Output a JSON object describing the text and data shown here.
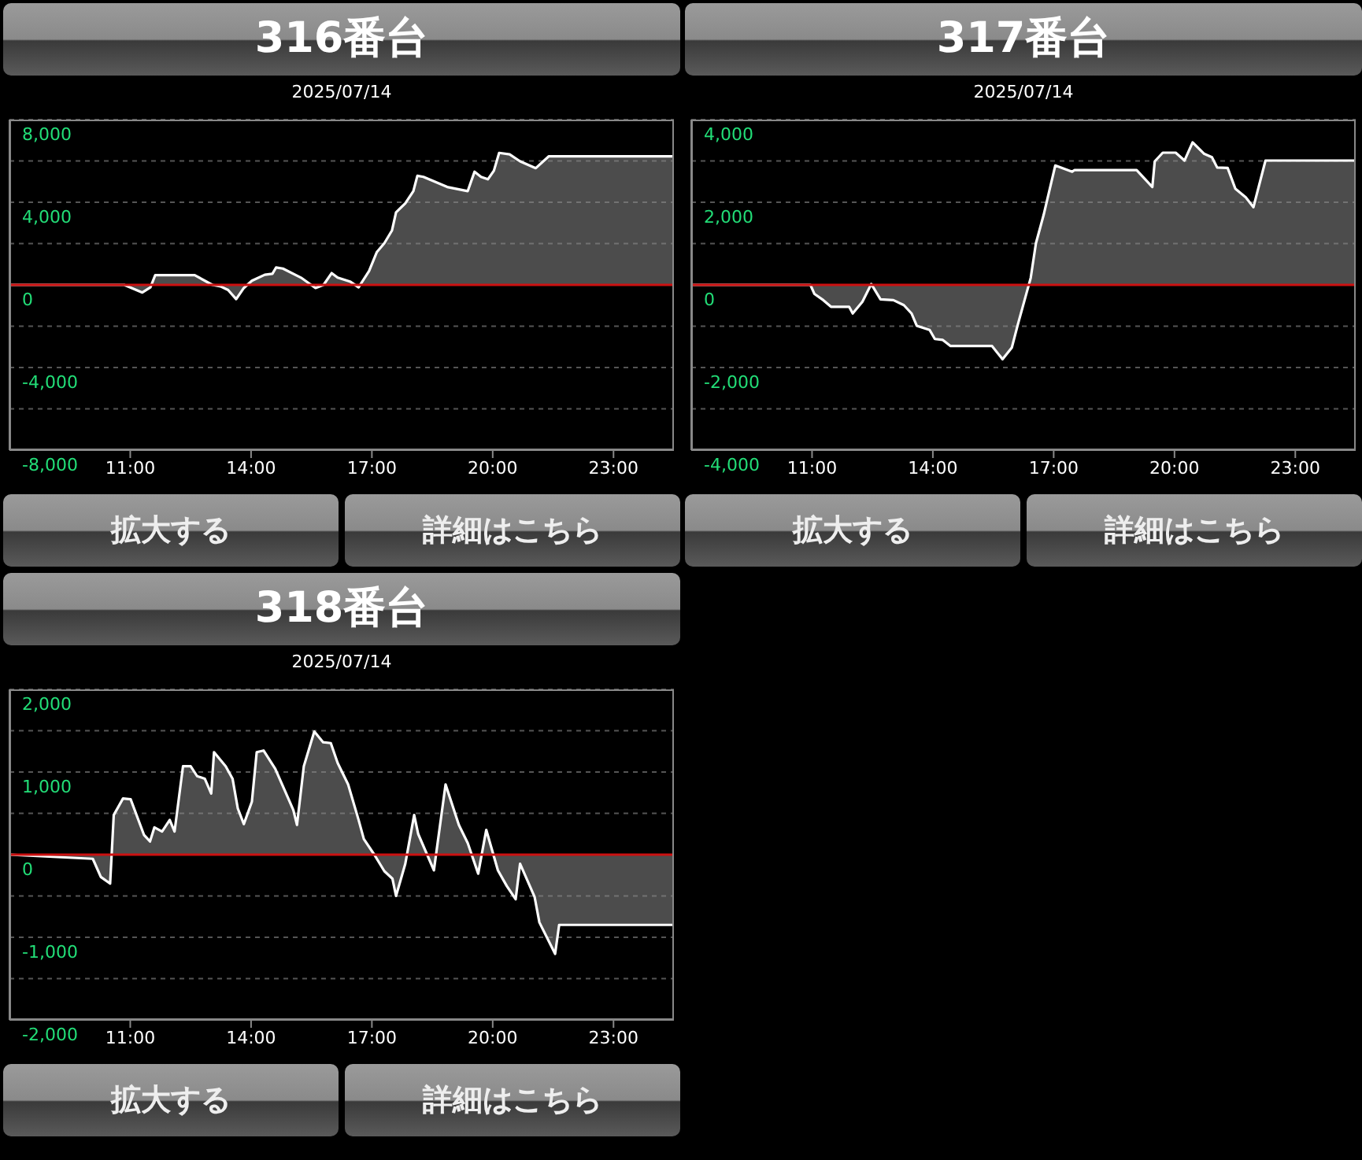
{
  "chart_data": [
    {
      "type": "area",
      "title": "316番台",
      "subtitle": "2025/07/14",
      "color": "#ffffff",
      "grid": "y",
      "xlim": [
        8,
        24.5
      ],
      "xticks": [
        {
          "value": 11,
          "label": "11:00"
        },
        {
          "value": 14,
          "label": "14:00"
        },
        {
          "value": 17,
          "label": "17:00"
        },
        {
          "value": 20,
          "label": "20:00"
        },
        {
          "value": 23,
          "label": "23:00"
        }
      ],
      "ylim": [
        -8000,
        8000
      ],
      "yticks": [
        {
          "value": 8000,
          "label": "8,000"
        },
        {
          "value": 6000,
          "label": null
        },
        {
          "value": 4000,
          "label": "4,000"
        },
        {
          "value": 2000,
          "label": null
        },
        {
          "value": 0,
          "label": "0"
        },
        {
          "value": -2000,
          "label": null
        },
        {
          "value": -4000,
          "label": "-4,000"
        },
        {
          "value": -6000,
          "label": null
        },
        {
          "value": -8000,
          "label": "-8,000"
        }
      ],
      "ref_lines": [
        {
          "axis": "y",
          "value": 0,
          "color": "#cc1111"
        }
      ],
      "annotations": [
        "拡大する",
        "詳細はこちら"
      ],
      "x": [
        8,
        10.85,
        11.3,
        11.5,
        11.62,
        12.6,
        13.04,
        13.24,
        13.43,
        13.63,
        13.82,
        14.02,
        14.34,
        14.53,
        14.62,
        14.79,
        15.24,
        15.6,
        15.8,
        16,
        16.15,
        16.47,
        16.67,
        16.93,
        17.12,
        17.31,
        17.5,
        17.6,
        17.83,
        18.03,
        18.13,
        18.28,
        18.87,
        19.38,
        19.55,
        19.71,
        19.88,
        20.03,
        20.16,
        20.42,
        20.68,
        21.07,
        21.39,
        24.5
      ],
      "values": [
        0,
        0,
        -370,
        -120,
        470,
        470,
        0,
        -70,
        -250,
        -690,
        -150,
        200,
        490,
        540,
        840,
        790,
        350,
        -150,
        0,
        570,
        350,
        150,
        -120,
        670,
        1580,
        2020,
        2640,
        3510,
        3950,
        4540,
        5280,
        5230,
        4740,
        4540,
        5480,
        5230,
        5110,
        5530,
        6390,
        6320,
        5980,
        5650,
        6220,
        6220
      ]
    },
    {
      "type": "area",
      "title": "317番台",
      "subtitle": "2025/07/14",
      "color": "#ffffff",
      "grid": "y",
      "xlim": [
        8,
        24.5
      ],
      "xticks": [
        {
          "value": 11,
          "label": "11:00"
        },
        {
          "value": 14,
          "label": "14:00"
        },
        {
          "value": 17,
          "label": "17:00"
        },
        {
          "value": 20,
          "label": "20:00"
        },
        {
          "value": 23,
          "label": "23:00"
        }
      ],
      "ylim": [
        -4000,
        4000
      ],
      "yticks": [
        {
          "value": 4000,
          "label": "4,000"
        },
        {
          "value": 3000,
          "label": null
        },
        {
          "value": 2000,
          "label": "2,000"
        },
        {
          "value": 1000,
          "label": null
        },
        {
          "value": 0,
          "label": "0"
        },
        {
          "value": -1000,
          "label": null
        },
        {
          "value": -2000,
          "label": "-2,000"
        },
        {
          "value": -3000,
          "label": null
        },
        {
          "value": -4000,
          "label": "-4,000"
        }
      ],
      "ref_lines": [
        {
          "axis": "y",
          "value": 0,
          "color": "#cc1111"
        }
      ],
      "annotations": [
        "拡大する",
        "詳細はこちら"
      ],
      "x": [
        8,
        10.96,
        11.06,
        11.28,
        11.47,
        11.92,
        12.01,
        12.25,
        12.47,
        12.7,
        13.02,
        13.28,
        13.47,
        13.6,
        13.92,
        14.05,
        14.24,
        14.44,
        15.47,
        15.73,
        15.96,
        16.11,
        16.43,
        16.56,
        16.75,
        17.04,
        17.46,
        17.52,
        19.06,
        19.45,
        19.51,
        19.71,
        20.03,
        20.25,
        20.45,
        20.74,
        20.93,
        21.06,
        21.32,
        21.51,
        21.77,
        21.96,
        22.26,
        24.5
      ],
      "values": [
        0,
        0,
        -220,
        -370,
        -530,
        -530,
        -690,
        -410,
        20,
        -350,
        -370,
        -490,
        -690,
        -990,
        -1090,
        -1310,
        -1330,
        -1480,
        -1480,
        -1800,
        -1520,
        -960,
        170,
        1010,
        1690,
        2890,
        2740,
        2780,
        2780,
        2370,
        2990,
        3200,
        3200,
        3010,
        3450,
        3170,
        3090,
        2840,
        2830,
        2330,
        2120,
        1880,
        3010,
        3010
      ]
    },
    {
      "type": "area",
      "title": "318番台",
      "subtitle": "2025/07/14",
      "color": "#ffffff",
      "grid": "y",
      "xlim": [
        8,
        24.5
      ],
      "xticks": [
        {
          "value": 11,
          "label": "11:00"
        },
        {
          "value": 14,
          "label": "14:00"
        },
        {
          "value": 17,
          "label": "17:00"
        },
        {
          "value": 20,
          "label": "20:00"
        },
        {
          "value": 23,
          "label": "23:00"
        }
      ],
      "ylim": [
        -2000,
        2000
      ],
      "yticks": [
        {
          "value": 2000,
          "label": "2,000"
        },
        {
          "value": 1500,
          "label": null
        },
        {
          "value": 1000,
          "label": "1,000"
        },
        {
          "value": 500,
          "label": null
        },
        {
          "value": 0,
          "label": "0"
        },
        {
          "value": -500,
          "label": null
        },
        {
          "value": -1000,
          "label": "-1,000"
        },
        {
          "value": -1500,
          "label": null
        },
        {
          "value": -2000,
          "label": "-2,000"
        }
      ],
      "ref_lines": [
        {
          "axis": "y",
          "value": 0,
          "color": "#cc1111"
        }
      ],
      "annotations": [
        "拡大する",
        "詳細はこちら"
      ],
      "x": [
        8,
        10.07,
        10.27,
        10.5,
        10.59,
        10.82,
        11.01,
        11.34,
        11.49,
        11.6,
        11.79,
        11.98,
        12.1,
        12.31,
        12.5,
        12.66,
        12.85,
        13.01,
        13.08,
        13.37,
        13.54,
        13.67,
        13.82,
        14.02,
        14.14,
        14.31,
        14.6,
        15.05,
        15.14,
        15.31,
        15.57,
        15.79,
        15.98,
        16.15,
        16.41,
        16.67,
        16.8,
        17.06,
        17.31,
        17.51,
        17.6,
        17.83,
        18.05,
        18.15,
        18.54,
        18.83,
        19.16,
        19.38,
        19.64,
        19.84,
        20.13,
        20.35,
        20.57,
        20.68,
        21.04,
        21.16,
        21.55,
        21.65,
        24.5
      ],
      "values": [
        0,
        -50,
        -270,
        -350,
        480,
        680,
        670,
        240,
        160,
        330,
        280,
        420,
        280,
        1070,
        1070,
        950,
        920,
        740,
        1240,
        1070,
        920,
        560,
        370,
        640,
        1240,
        1260,
        1040,
        540,
        360,
        1070,
        1490,
        1360,
        1350,
        1110,
        850,
        420,
        190,
        0,
        -200,
        -290,
        -500,
        -110,
        480,
        250,
        -190,
        850,
        360,
        140,
        -230,
        300,
        -190,
        -380,
        -540,
        -110,
        -510,
        -820,
        -1200,
        -850,
        -850
      ]
    }
  ]
}
